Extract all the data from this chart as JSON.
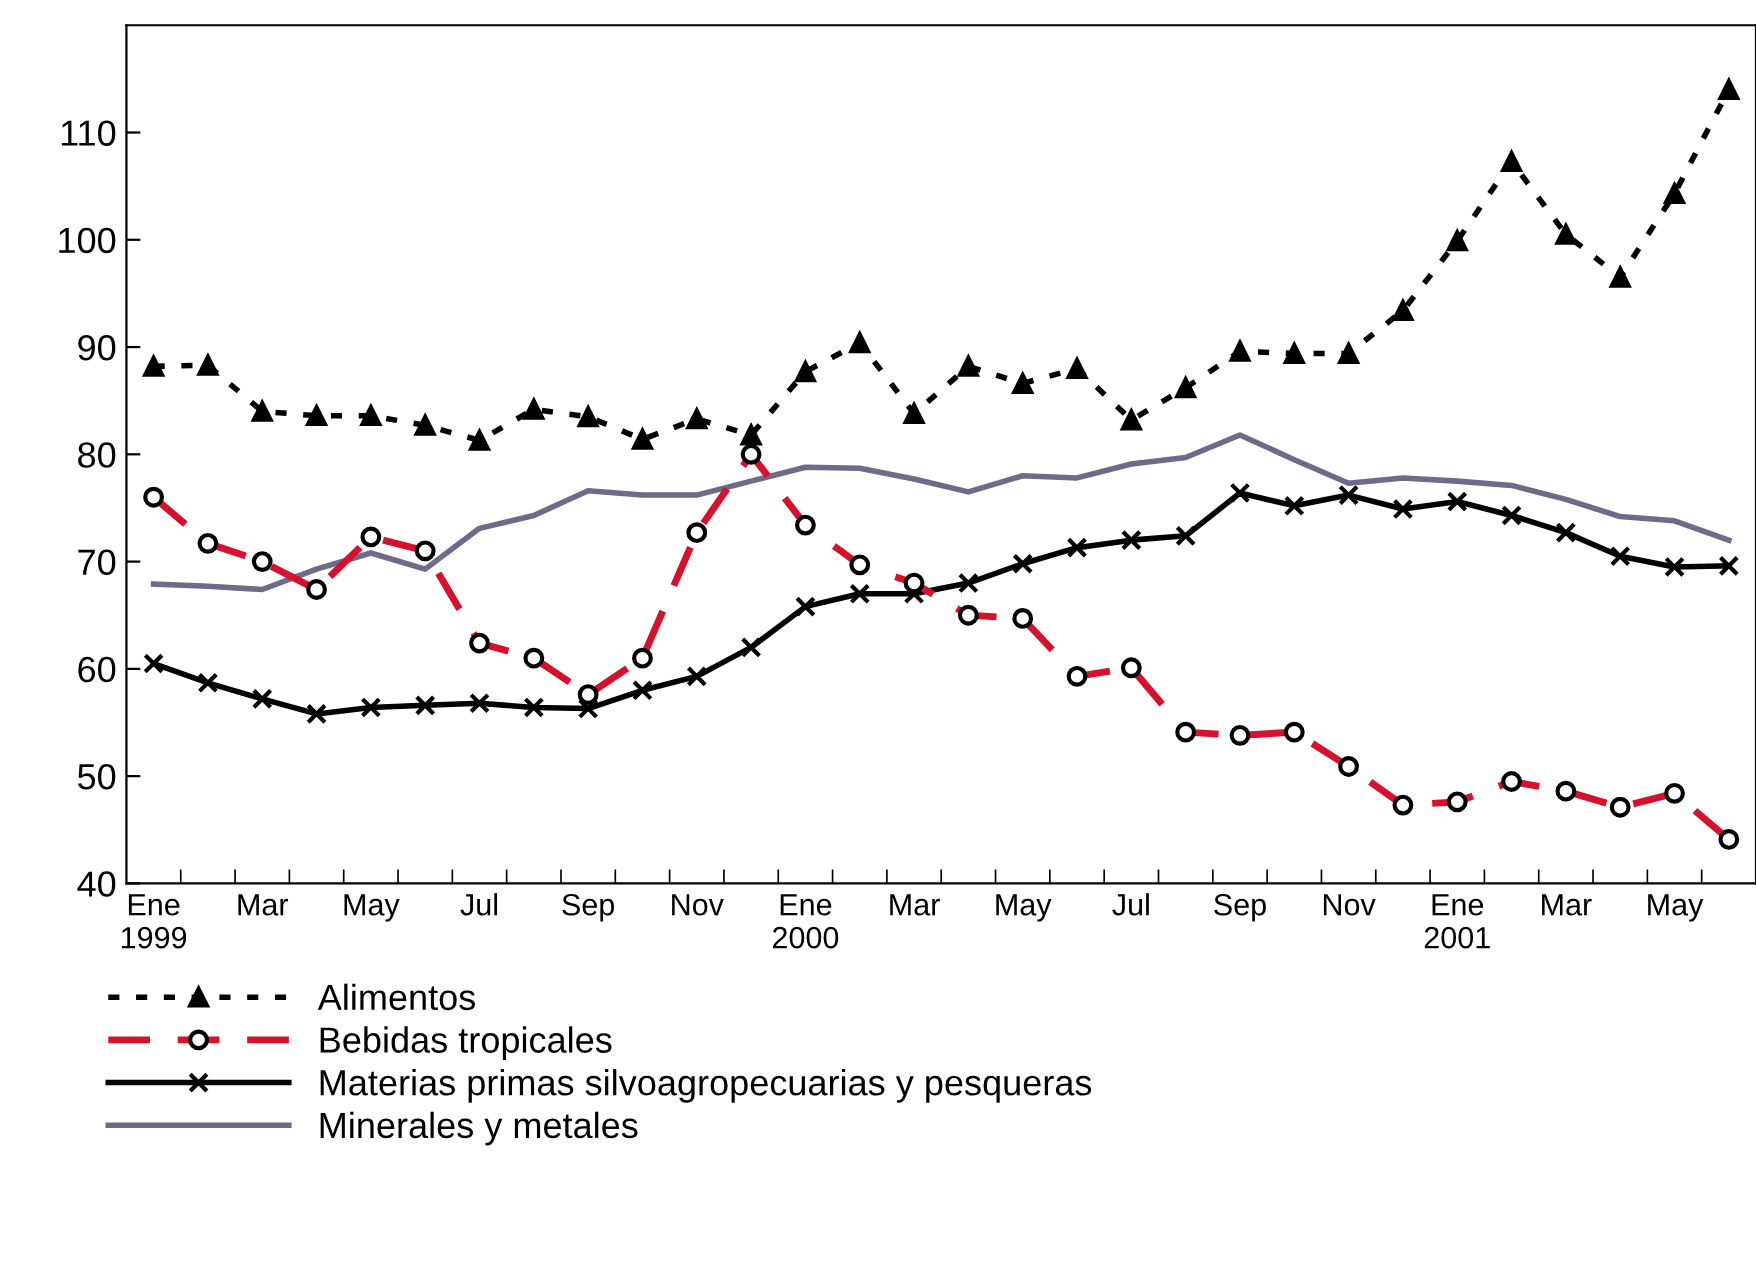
{
  "chart_data": {
    "type": "line",
    "categories": [
      "Ene\n1999",
      null,
      "Mar",
      null,
      "May",
      null,
      "Jul",
      null,
      "Sep",
      null,
      "Nov",
      null,
      "Ene\n2000",
      null,
      "Mar",
      null,
      "May",
      null,
      "Jul",
      null,
      "Sep",
      null,
      "Nov",
      null,
      "Ene\n2001",
      null,
      "Mar",
      null,
      "May",
      null
    ],
    "ylim": [
      40,
      120
    ],
    "yticks": [
      40,
      50,
      60,
      70,
      80,
      90,
      100,
      110
    ],
    "grid": false,
    "legend": "bottom",
    "series": [
      {
        "name": "Alimentos",
        "color": "#000000",
        "marker": "triangle",
        "line_style": "dotted",
        "values": [
          88.2,
          88.3,
          84,
          83.6,
          83.6,
          82.7,
          81.3,
          84.2,
          83.5,
          81.4,
          83.3,
          81.8,
          87.7,
          90.4,
          83.8,
          88.2,
          86.6,
          88,
          83.2,
          86.2,
          89.6,
          89.4,
          89.4,
          93.4,
          99.9,
          107.3,
          100.5,
          96.5,
          104.3,
          114
        ]
      },
      {
        "name": "Bebidas tropicales",
        "color": "#d8102c",
        "marker": "circle",
        "line_style": "dashed",
        "values": [
          76,
          71.7,
          70,
          67.4,
          72.3,
          71,
          62.4,
          61,
          57.6,
          61,
          72.7,
          80,
          73.4,
          69.7,
          68,
          65,
          64.7,
          59.3,
          60.1,
          54.1,
          53.8,
          54.1,
          50.9,
          47.3,
          47.6,
          49.5,
          48.6,
          47.1,
          48.4,
          44.1
        ]
      },
      {
        "name": "Materias primas silvoagropecuarias y pesqueras",
        "color": "#000000",
        "marker": "cross",
        "line_style": "solid",
        "values": [
          60.5,
          58.7,
          57.2,
          55.8,
          56.4,
          56.6,
          56.8,
          56.4,
          56.3,
          58,
          59.3,
          62,
          65.8,
          67,
          67,
          68,
          69.8,
          71.3,
          72,
          72.4,
          76.4,
          75.2,
          76.2,
          74.9,
          75.6,
          74.3,
          72.7,
          70.5,
          69.5,
          69.6
        ]
      },
      {
        "name": "Minerales y metales",
        "color": "#6e6a8a",
        "marker": "none",
        "line_style": "solid",
        "values": [
          67.9,
          67.7,
          67.4,
          69.3,
          70.8,
          69.3,
          73.1,
          74.3,
          76.6,
          76.2,
          76.2,
          77.5,
          78.8,
          78.7,
          77.7,
          76.5,
          78,
          77.8,
          79.1,
          79.7,
          81.8,
          79.5,
          77.3,
          77.8,
          77.5,
          77.1,
          75.8,
          74.2,
          73.8,
          72
        ]
      }
    ]
  }
}
